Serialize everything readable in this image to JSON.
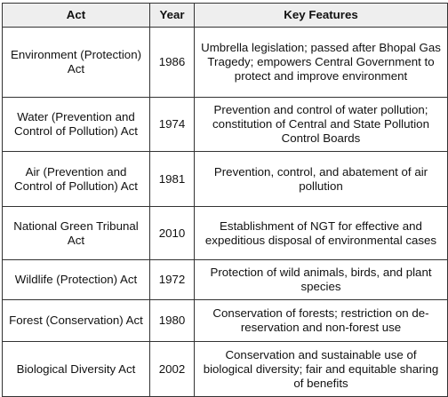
{
  "table": {
    "headers": [
      "Act",
      "Year",
      "Key Features"
    ],
    "rows": [
      {
        "act": "Environment (Protection) Act",
        "year": "1986",
        "features": "Umbrella legislation; passed after Bhopal Gas Tragedy; empowers Central Government to protect and improve environment"
      },
      {
        "act": "Water (Prevention and Control of Pollution) Act",
        "year": "1974",
        "features": "Prevention and control of water pollution; constitution of Central and State Pollution Control Boards"
      },
      {
        "act": "Air (Prevention and Control of Pollution) Act",
        "year": "1981",
        "features": "Prevention, control, and abatement of air pollution"
      },
      {
        "act": "National Green Tribunal Act",
        "year": "2010",
        "features": "Establishment of NGT for effective and expeditious disposal of environmental cases"
      },
      {
        "act": "Wildlife (Protection) Act",
        "year": "1972",
        "features": "Protection of wild animals, birds, and plant species"
      },
      {
        "act": "Forest (Conservation) Act",
        "year": "1980",
        "features": "Conservation of forests; restriction on de-reservation and non-forest use"
      },
      {
        "act": "Biological Diversity Act",
        "year": "2002",
        "features": "Conservation and sustainable use of biological diversity; fair and equitable sharing of benefits"
      }
    ]
  }
}
